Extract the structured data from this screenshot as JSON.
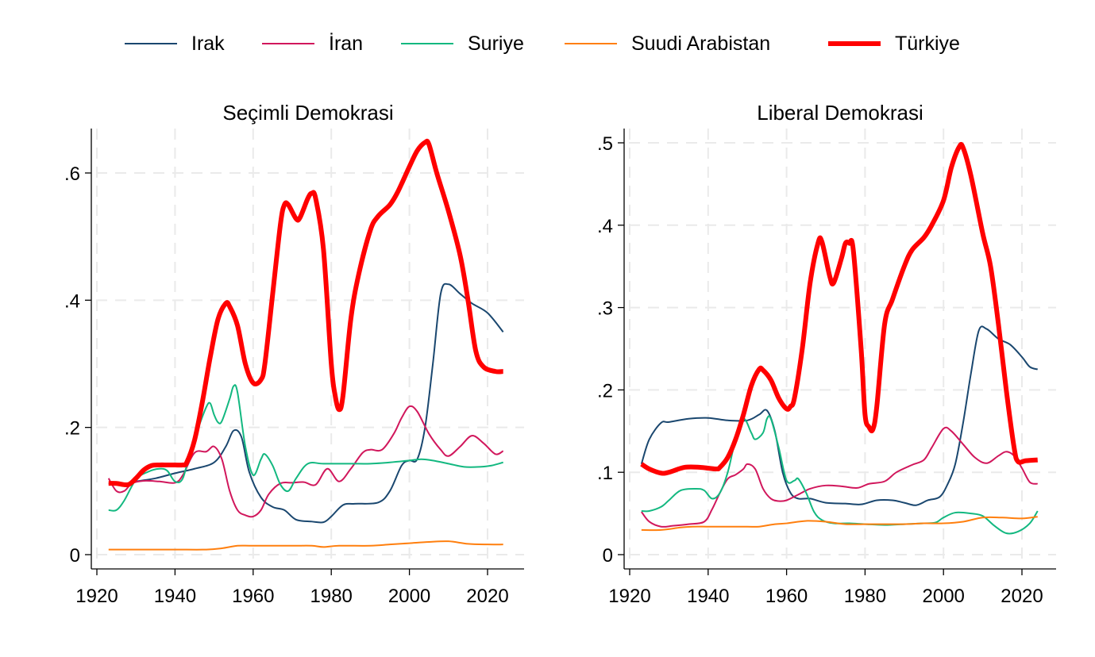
{
  "chart_data": [
    {
      "type": "line",
      "title": "Seçimli Demokrasi",
      "xlabel": "",
      "ylabel": "",
      "xlim": [
        1917,
        2027
      ],
      "ylim": [
        -0.02,
        0.67
      ],
      "xticks": [
        1920,
        1940,
        1960,
        1980,
        2000,
        2020
      ],
      "xtick_labels": [
        "1920",
        "1940",
        "1960",
        "1980",
        "2000",
        "2020"
      ],
      "yticks": [
        0,
        0.2,
        0.4,
        0.6
      ],
      "ytick_labels": [
        "0",
        ".2",
        ".4",
        ".6"
      ],
      "grid": true,
      "series": [
        {
          "name": "Irak",
          "x": [
            1923,
            1926,
            1930,
            1935,
            1940,
            1945,
            1950,
            1953,
            1955,
            1957,
            1959,
            1962,
            1965,
            1968,
            1971,
            1975,
            1978,
            1980,
            1983,
            1986,
            1992,
            1995,
            1998,
            2000,
            2002,
            2004,
            2006,
            2008,
            2010,
            2013,
            2016,
            2020,
            2024
          ],
          "y": [
            0.112,
            0.11,
            0.115,
            0.12,
            0.128,
            0.135,
            0.145,
            0.17,
            0.195,
            0.185,
            0.13,
            0.09,
            0.075,
            0.07,
            0.055,
            0.052,
            0.051,
            0.06,
            0.078,
            0.08,
            0.082,
            0.1,
            0.14,
            0.148,
            0.15,
            0.2,
            0.3,
            0.41,
            0.425,
            0.41,
            0.395,
            0.38,
            0.35
          ]
        },
        {
          "name": "İran",
          "x": [
            1923,
            1925,
            1927,
            1929,
            1932,
            1936,
            1940,
            1942,
            1945,
            1948,
            1950,
            1952,
            1954,
            1956,
            1958,
            1960,
            1962,
            1964,
            1967,
            1970,
            1973,
            1976,
            1979,
            1982,
            1985,
            1988,
            1990,
            1993,
            1996,
            1998,
            2000,
            2002,
            2005,
            2008,
            2010,
            2013,
            2016,
            2019,
            2022,
            2024
          ],
          "y": [
            0.12,
            0.1,
            0.1,
            0.112,
            0.116,
            0.115,
            0.113,
            0.125,
            0.16,
            0.162,
            0.17,
            0.15,
            0.1,
            0.07,
            0.062,
            0.06,
            0.07,
            0.095,
            0.112,
            0.113,
            0.114,
            0.11,
            0.135,
            0.115,
            0.135,
            0.16,
            0.165,
            0.165,
            0.19,
            0.215,
            0.233,
            0.225,
            0.19,
            0.165,
            0.155,
            0.17,
            0.187,
            0.175,
            0.158,
            0.163
          ]
        },
        {
          "name": "Suriye",
          "x": [
            1923,
            1925,
            1927,
            1930,
            1933,
            1936,
            1938,
            1940,
            1942,
            1944,
            1946,
            1948,
            1949,
            1950,
            1951,
            1952,
            1954,
            1955,
            1956,
            1958,
            1960,
            1962,
            1963,
            1965,
            1967,
            1969,
            1971,
            1974,
            1978,
            1985,
            1990,
            1995,
            2000,
            2003,
            2006,
            2010,
            2014,
            2018,
            2021,
            2024
          ],
          "y": [
            0.07,
            0.07,
            0.085,
            0.118,
            0.13,
            0.135,
            0.132,
            0.115,
            0.12,
            0.165,
            0.2,
            0.232,
            0.238,
            0.22,
            0.208,
            0.21,
            0.245,
            0.265,
            0.255,
            0.17,
            0.125,
            0.15,
            0.158,
            0.14,
            0.11,
            0.1,
            0.12,
            0.143,
            0.143,
            0.143,
            0.143,
            0.145,
            0.148,
            0.15,
            0.148,
            0.143,
            0.138,
            0.138,
            0.14,
            0.145
          ]
        },
        {
          "name": "Suudi Arabistan",
          "x": [
            1923,
            1930,
            1940,
            1948,
            1952,
            1956,
            1960,
            1970,
            1975,
            1978,
            1982,
            1990,
            1995,
            2000,
            2005,
            2010,
            2015,
            2020,
            2024
          ],
          "y": [
            0.008,
            0.008,
            0.008,
            0.008,
            0.01,
            0.014,
            0.014,
            0.014,
            0.014,
            0.012,
            0.014,
            0.014,
            0.016,
            0.018,
            0.02,
            0.021,
            0.017,
            0.016,
            0.016
          ]
        },
        {
          "name": "Türkiye",
          "x": [
            1923,
            1925,
            1928,
            1930,
            1932,
            1934,
            1936,
            1938,
            1940,
            1942,
            1943,
            1945,
            1947,
            1949,
            1951,
            1953,
            1954,
            1956,
            1958,
            1960,
            1962,
            1963,
            1965,
            1967,
            1968,
            1969,
            1971,
            1972,
            1974,
            1975,
            1976,
            1978,
            1980,
            1981,
            1982,
            1983,
            1985,
            1987,
            1990,
            1992,
            1995,
            1997,
            2000,
            2002,
            2004,
            2005,
            2007,
            2010,
            2013,
            2015,
            2017,
            2019,
            2022,
            2024
          ],
          "y": [
            0.112,
            0.112,
            0.11,
            0.12,
            0.133,
            0.14,
            0.141,
            0.141,
            0.141,
            0.141,
            0.145,
            0.18,
            0.24,
            0.31,
            0.37,
            0.395,
            0.39,
            0.36,
            0.3,
            0.27,
            0.275,
            0.3,
            0.41,
            0.52,
            0.55,
            0.55,
            0.528,
            0.53,
            0.56,
            0.568,
            0.56,
            0.48,
            0.3,
            0.25,
            0.228,
            0.25,
            0.37,
            0.44,
            0.51,
            0.532,
            0.55,
            0.57,
            0.61,
            0.635,
            0.648,
            0.645,
            0.6,
            0.54,
            0.47,
            0.4,
            0.32,
            0.295,
            0.288,
            0.288
          ]
        }
      ]
    },
    {
      "type": "line",
      "title": "Liberal Demokrasi",
      "xlabel": "",
      "ylabel": "",
      "xlim": [
        1917,
        2027
      ],
      "ylim": [
        -0.017,
        0.52
      ],
      "xticks": [
        1920,
        1940,
        1960,
        1980,
        2000,
        2020
      ],
      "xtick_labels": [
        "1920",
        "1940",
        "1960",
        "1980",
        "2000",
        "2020"
      ],
      "yticks": [
        0,
        0.1,
        0.2,
        0.3,
        0.4,
        0.5
      ],
      "ytick_labels": [
        "0",
        ".1",
        ".2",
        ".3",
        ".4",
        ".5"
      ],
      "grid": true,
      "series": [
        {
          "name": "Irak",
          "x": [
            1923,
            1925,
            1928,
            1930,
            1935,
            1940,
            1945,
            1950,
            1953,
            1955,
            1957,
            1959,
            1961,
            1963,
            1966,
            1970,
            1975,
            1979,
            1983,
            1987,
            1990,
            1993,
            1996,
            1999,
            2001,
            2003,
            2005,
            2007,
            2009,
            2011,
            2014,
            2017,
            2020,
            2022,
            2024
          ],
          "y": [
            0.11,
            0.14,
            0.16,
            0.161,
            0.165,
            0.166,
            0.163,
            0.163,
            0.17,
            0.175,
            0.15,
            0.1,
            0.075,
            0.068,
            0.068,
            0.063,
            0.062,
            0.061,
            0.066,
            0.066,
            0.063,
            0.06,
            0.066,
            0.07,
            0.085,
            0.11,
            0.16,
            0.22,
            0.272,
            0.274,
            0.262,
            0.255,
            0.24,
            0.228,
            0.225
          ]
        },
        {
          "name": "İran",
          "x": [
            1923,
            1925,
            1928,
            1931,
            1935,
            1939,
            1941,
            1943,
            1945,
            1947,
            1949,
            1950,
            1952,
            1954,
            1956,
            1958,
            1960,
            1963,
            1966,
            1970,
            1974,
            1978,
            1981,
            1985,
            1988,
            1992,
            1995,
            1997,
            2000,
            2002,
            2005,
            2008,
            2011,
            2014,
            2016,
            2018,
            2020,
            2022,
            2024
          ],
          "y": [
            0.052,
            0.04,
            0.034,
            0.035,
            0.037,
            0.04,
            0.055,
            0.075,
            0.092,
            0.097,
            0.104,
            0.11,
            0.104,
            0.08,
            0.068,
            0.065,
            0.066,
            0.073,
            0.08,
            0.084,
            0.083,
            0.081,
            0.086,
            0.089,
            0.1,
            0.109,
            0.115,
            0.13,
            0.153,
            0.15,
            0.134,
            0.118,
            0.111,
            0.12,
            0.125,
            0.12,
            0.105,
            0.088,
            0.086
          ]
        },
        {
          "name": "Suriye",
          "x": [
            1923,
            1925,
            1928,
            1930,
            1933,
            1937,
            1939,
            1941,
            1943,
            1945,
            1947,
            1949,
            1951,
            1952,
            1954,
            1955,
            1956,
            1958,
            1960,
            1962,
            1963,
            1965,
            1967,
            1969,
            1972,
            1976,
            1980,
            1985,
            1990,
            1995,
            1998,
            2000,
            2003,
            2007,
            2010,
            2013,
            2016,
            2019,
            2022,
            2024
          ],
          "y": [
            0.053,
            0.053,
            0.058,
            0.066,
            0.078,
            0.08,
            0.078,
            0.068,
            0.075,
            0.1,
            0.14,
            0.165,
            0.148,
            0.14,
            0.148,
            0.165,
            0.165,
            0.13,
            0.09,
            0.09,
            0.092,
            0.075,
            0.052,
            0.042,
            0.038,
            0.038,
            0.037,
            0.036,
            0.037,
            0.038,
            0.039,
            0.045,
            0.051,
            0.05,
            0.047,
            0.035,
            0.026,
            0.028,
            0.038,
            0.053
          ]
        },
        {
          "name": "Suudi Arabistan",
          "x": [
            1923,
            1928,
            1933,
            1936,
            1940,
            1945,
            1950,
            1953,
            1957,
            1960,
            1965,
            1970,
            1975,
            1980,
            1985,
            1990,
            1995,
            2000,
            2005,
            2010,
            2015,
            2020,
            2024
          ],
          "y": [
            0.03,
            0.03,
            0.033,
            0.034,
            0.034,
            0.034,
            0.034,
            0.034,
            0.037,
            0.038,
            0.041,
            0.04,
            0.037,
            0.037,
            0.037,
            0.037,
            0.038,
            0.038,
            0.04,
            0.045,
            0.045,
            0.044,
            0.046
          ]
        },
        {
          "name": "Türkiye",
          "x": [
            1923,
            1925,
            1928,
            1930,
            1934,
            1938,
            1942,
            1943,
            1945,
            1947,
            1949,
            1951,
            1953,
            1954,
            1956,
            1958,
            1960,
            1961,
            1962,
            1964,
            1966,
            1968,
            1969,
            1971,
            1972,
            1974,
            1975,
            1976,
            1977,
            1979,
            1980,
            1981,
            1982,
            1983,
            1985,
            1987,
            1990,
            1992,
            1995,
            1997,
            2000,
            2002,
            2004,
            2005,
            2007,
            2010,
            2012,
            2014,
            2016,
            2018,
            2019,
            2021,
            2024
          ],
          "y": [
            0.11,
            0.104,
            0.099,
            0.1,
            0.106,
            0.106,
            0.104,
            0.106,
            0.118,
            0.14,
            0.17,
            0.205,
            0.225,
            0.224,
            0.212,
            0.19,
            0.177,
            0.18,
            0.19,
            0.25,
            0.33,
            0.378,
            0.38,
            0.338,
            0.33,
            0.36,
            0.378,
            0.378,
            0.37,
            0.25,
            0.17,
            0.155,
            0.152,
            0.18,
            0.28,
            0.31,
            0.35,
            0.37,
            0.385,
            0.4,
            0.43,
            0.47,
            0.495,
            0.494,
            0.46,
            0.39,
            0.35,
            0.28,
            0.2,
            0.13,
            0.113,
            0.114,
            0.115
          ]
        }
      ]
    }
  ],
  "legend": {
    "placement": "top",
    "items": [
      {
        "label": "Irak",
        "color": "#1a476f"
      },
      {
        "label": "İran",
        "color": "#d1175c"
      },
      {
        "label": "Suriye",
        "color": "#13b880"
      },
      {
        "label": "Suudi Arabistan",
        "color": "#ff7f0e"
      },
      {
        "label": "Türkiye",
        "color": "#ff0000"
      }
    ]
  }
}
